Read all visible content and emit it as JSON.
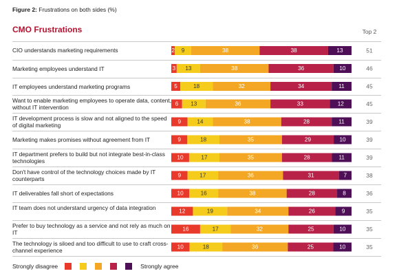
{
  "figure": {
    "label": "Figure 2:",
    "title": "Frustrations on both sides (%)"
  },
  "section_title": "CMO Frustrations",
  "top2_header": "Top 2",
  "colors": {
    "strongly_disagree": "#e8392a",
    "disagree": "#f5cc1c",
    "neutral": "#f3a724",
    "agree": "#b82148",
    "strongly_agree": "#4f0f57",
    "segment_text_light": "#ffffff",
    "segment_text_dark": "#333333"
  },
  "chart_data": {
    "type": "bar",
    "orientation": "horizontal",
    "stacked": true,
    "title": "Frustrations on both sides (%)",
    "categories": [
      "CIO understands marketing requirements",
      "Marketing employees understand IT",
      "IT employees understand marketing programs",
      "Want to enable marketing employees to operate data, content, without IT intervention",
      "IT development process is slow and not aligned to the speed of digital marketing",
      "Marketing makes promises without agreement from IT",
      "IT department prefers to build but not integrate best-in-class technologies",
      "Don't have control of the technology choices made by IT counterparts",
      "IT deliverables fall short of expectations",
      "IT team does not understand urgency of data integration",
      "Prefer to buy technology as a service and not rely as much on IT",
      "The technology is siloed and too difficult to use to craft cross-channel experience"
    ],
    "series": [
      {
        "name": "Strongly disagree",
        "values": [
          2,
          3,
          5,
          6,
          9,
          9,
          10,
          9,
          10,
          12,
          16,
          10
        ]
      },
      {
        "name": "",
        "values": [
          9,
          13,
          18,
          13,
          14,
          18,
          17,
          17,
          16,
          19,
          17,
          18
        ]
      },
      {
        "name": "",
        "values": [
          38,
          38,
          32,
          36,
          38,
          35,
          35,
          36,
          38,
          34,
          32,
          36
        ]
      },
      {
        "name": "",
        "values": [
          38,
          36,
          34,
          33,
          28,
          29,
          28,
          31,
          28,
          26,
          25,
          25
        ]
      },
      {
        "name": "Strongly agree",
        "values": [
          13,
          10,
          11,
          12,
          11,
          10,
          11,
          7,
          8,
          9,
          10,
          10
        ]
      }
    ],
    "top2": [
      51,
      46,
      45,
      45,
      39,
      39,
      39,
      38,
      36,
      35,
      35,
      35
    ],
    "xlim": [
      0,
      100
    ],
    "legend": "bottom-left"
  },
  "rows": [
    {
      "label": "CIO understands marketing requirements"
    },
    {
      "label": "Marketing employees understand IT"
    },
    {
      "label": "IT employees understand marketing programs"
    },
    {
      "label": "Want to enable marketing employees to operate data, content, without IT intervention"
    },
    {
      "label": "IT development process is slow and not aligned to the speed of digital marketing"
    },
    {
      "label": "Marketing makes promises without agreement from IT"
    },
    {
      "label": "IT department prefers to build but not integrate best-in-class technologies"
    },
    {
      "label": "Don't have control of the technology choices made by IT counterparts"
    },
    {
      "label": "IT deliverables fall short of expectations"
    },
    {
      "label": "IT team does not understand urgency of data integration"
    },
    {
      "label": "Prefer to buy technology as a service and not rely as much on IT"
    },
    {
      "label": "The technology is siloed and too difficult to use to craft cross-channel experience"
    }
  ],
  "legend": {
    "left_label": "Strongly disagree",
    "right_label": "Strongly agree"
  }
}
